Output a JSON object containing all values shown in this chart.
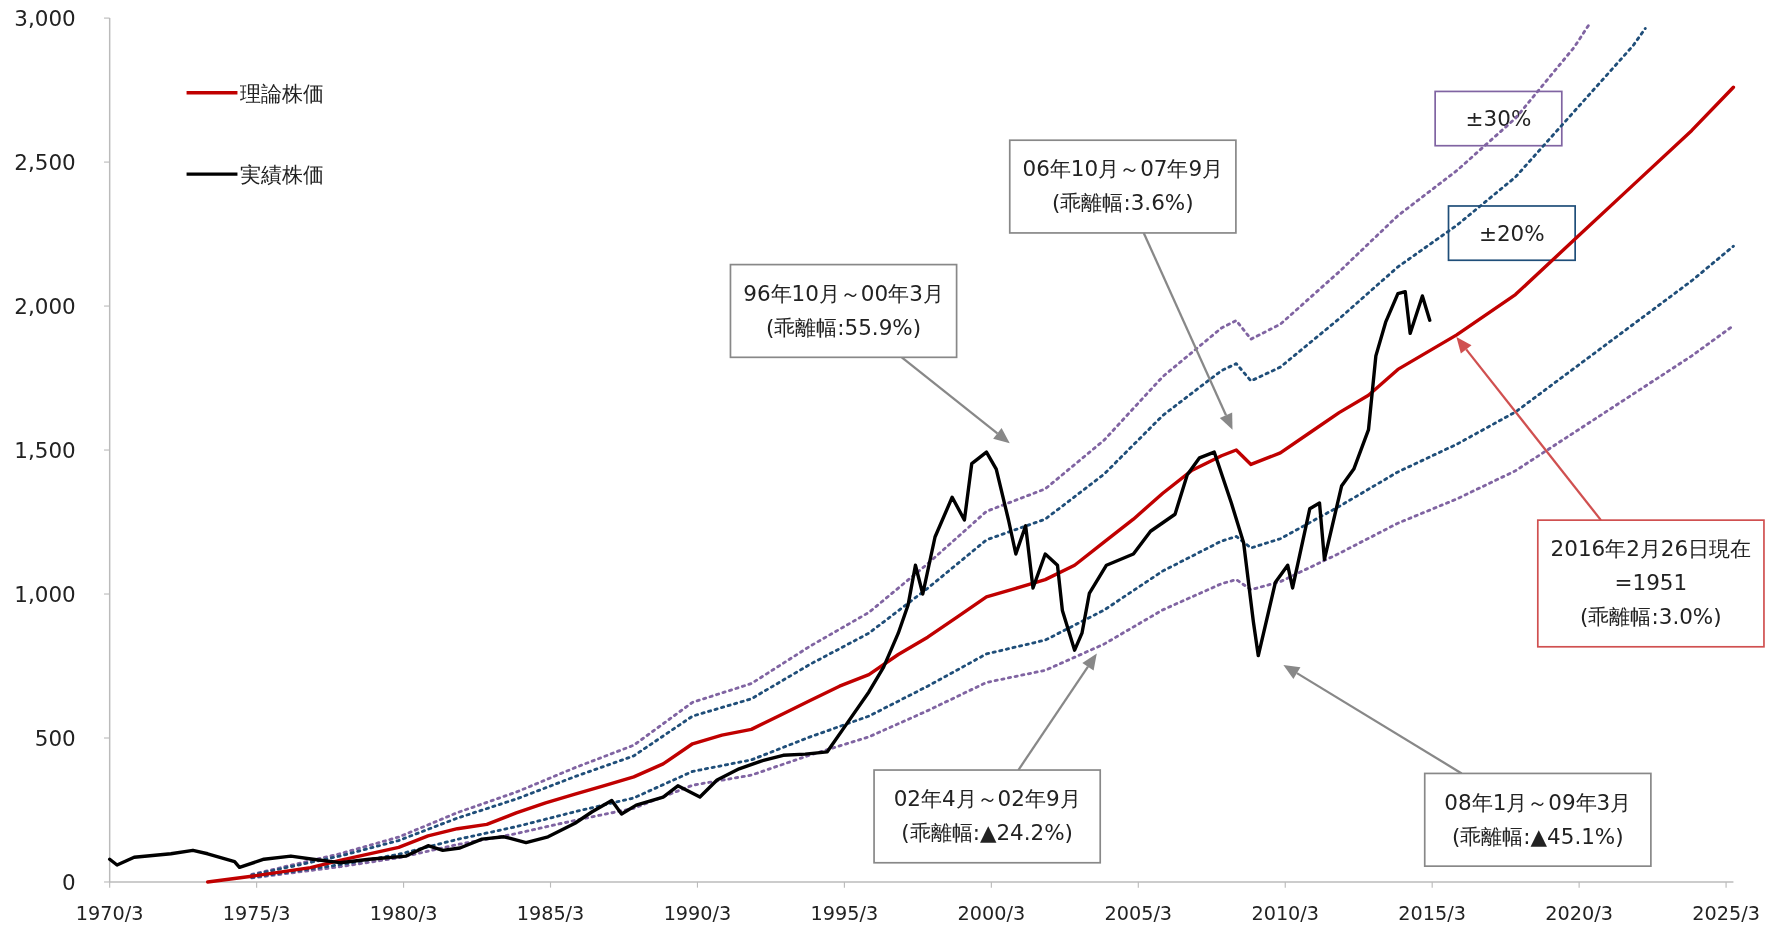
{
  "chart_data": {
    "type": "line",
    "xlim": [
      "1970-03",
      "2025-06"
    ],
    "ylim": [
      0,
      3000
    ],
    "xticks": [
      {
        "value": "1970-03",
        "label": "1970/3"
      },
      {
        "value": "1975-03",
        "label": "1975/3"
      },
      {
        "value": "1980-03",
        "label": "1980/3"
      },
      {
        "value": "1985-03",
        "label": "1985/3"
      },
      {
        "value": "1990-03",
        "label": "1990/3"
      },
      {
        "value": "1995-03",
        "label": "1995/3"
      },
      {
        "value": "2000-03",
        "label": "2000/3"
      },
      {
        "value": "2005-03",
        "label": "2005/3"
      },
      {
        "value": "2010-03",
        "label": "2010/3"
      },
      {
        "value": "2015-03",
        "label": "2015/3"
      },
      {
        "value": "2020-03",
        "label": "2020/3"
      },
      {
        "value": "2025-03",
        "label": "2025/3"
      }
    ],
    "yticks": [
      0,
      500,
      {
        "value": 1000,
        "label": "1,000"
      },
      {
        "value": 1500,
        "label": "1,500"
      },
      {
        "value": 2000,
        "label": "2,000"
      },
      {
        "value": 2500,
        "label": "2,500"
      },
      {
        "value": 3000,
        "label": "3,000"
      }
    ],
    "legend": "top left",
    "series": [
      {
        "name": "±30%",
        "color": "#8064a2",
        "line_style": "dotted",
        "x": [
          "1975-01",
          "1978-01",
          "1980-01",
          "1982-01",
          "1984-01",
          "1986-01",
          "1988-01",
          "1990-01",
          "1992-01",
          "1994-01",
          "1996-01",
          "1998-01",
          "2000-01",
          "2002-01",
          "2004-01",
          "2006-01",
          "2008-01",
          "2008-07",
          "2009-01",
          "2010-01",
          "2012-01",
          "2014-01",
          "2016-01",
          "2018-01",
          "2020-01",
          "2020-07"
        ],
        "values": [
          26,
          98,
          156,
          241,
          312,
          397,
          475,
          624,
          689,
          819,
          936,
          1105,
          1287,
          1365,
          1534,
          1755,
          1924,
          1950,
          1885,
          1937,
          2119,
          2314,
          2470,
          2652,
          2899,
          2977
        ]
      },
      {
        "color": "#8064a2",
        "line_style": "dotted",
        "x": [
          "1975-01",
          "1978-01",
          "1980-01",
          "1982-01",
          "1984-01",
          "1986-01",
          "1988-01",
          "1990-01",
          "1992-01",
          "1994-01",
          "1996-01",
          "1998-01",
          "2000-01",
          "2002-01",
          "2004-01",
          "2006-01",
          "2008-01",
          "2008-07",
          "2009-01",
          "2010-01",
          "2012-01",
          "2014-01",
          "2016-01",
          "2018-01",
          "2020-01",
          "2022-01",
          "2024-01",
          "2025-06"
        ],
        "values": [
          14,
          53,
          84,
          130,
          168,
          214,
          256,
          336,
          371,
          441,
          504,
          595,
          693,
          735,
          826,
          945,
          1036,
          1050,
          1015,
          1043,
          1141,
          1246,
          1330,
          1428,
          1561,
          1694,
          1827,
          1932
        ]
      },
      {
        "name": "±20%",
        "color": "#1f4e79",
        "line_style": "dotted",
        "x": [
          "1975-01",
          "1978-01",
          "1980-01",
          "1982-01",
          "1984-01",
          "1986-01",
          "1988-01",
          "1990-01",
          "1992-01",
          "1994-01",
          "1996-01",
          "1998-01",
          "2000-01",
          "2002-01",
          "2004-01",
          "2006-01",
          "2008-01",
          "2008-07",
          "2009-01",
          "2010-01",
          "2012-01",
          "2014-01",
          "2016-01",
          "2018-01",
          "2020-01",
          "2022-01",
          "2022-06"
        ],
        "values": [
          24,
          90,
          144,
          222,
          288,
          366,
          438,
          576,
          636,
          756,
          864,
          1020,
          1188,
          1260,
          1416,
          1620,
          1776,
          1800,
          1740,
          1788,
          1956,
          2136,
          2280,
          2448,
          2676,
          2904,
          2964
        ]
      },
      {
        "color": "#1f4e79",
        "line_style": "dotted",
        "x": [
          "1975-01",
          "1978-01",
          "1980-01",
          "1982-01",
          "1984-01",
          "1986-01",
          "1988-01",
          "1990-01",
          "1992-01",
          "1994-01",
          "1996-01",
          "1998-01",
          "2000-01",
          "2002-01",
          "2004-01",
          "2006-01",
          "2008-01",
          "2008-07",
          "2009-01",
          "2010-01",
          "2012-01",
          "2014-01",
          "2016-01",
          "2018-01",
          "2020-01",
          "2022-01",
          "2024-01",
          "2025-06"
        ],
        "values": [
          16,
          60,
          96,
          148,
          192,
          244,
          292,
          384,
          424,
          504,
          576,
          680,
          792,
          840,
          944,
          1080,
          1184,
          1200,
          1160,
          1192,
          1304,
          1424,
          1520,
          1632,
          1784,
          1936,
          2088,
          2208
        ]
      },
      {
        "name": "理論株価",
        "color": "#c00000",
        "line_style": "solid",
        "x": [
          "1973-07",
          "1975-01",
          "1977-01",
          "1978-01",
          "1980-01",
          "1981-01",
          "1982-01",
          "1983-01",
          "1984-01",
          "1985-01",
          "1986-01",
          "1987-01",
          "1988-01",
          "1989-01",
          "1990-01",
          "1991-01",
          "1992-01",
          "1993-01",
          "1994-01",
          "1995-01",
          "1996-01",
          "1997-01",
          "1998-01",
          "1999-01",
          "2000-01",
          "2001-01",
          "2002-01",
          "2003-01",
          "2004-01",
          "2005-01",
          "2006-01",
          "2007-01",
          "2008-01",
          "2008-07",
          "2009-01",
          "2010-01",
          "2011-01",
          "2012-01",
          "2013-01",
          "2014-01",
          "2015-01",
          "2016-01",
          "2018-01",
          "2020-01",
          "2022-01",
          "2024-01",
          "2025-06"
        ],
        "values": [
          0,
          20,
          50,
          75,
          120,
          160,
          185,
          200,
          240,
          275,
          305,
          335,
          365,
          410,
          480,
          510,
          530,
          580,
          630,
          680,
          720,
          790,
          850,
          920,
          990,
          1020,
          1050,
          1100,
          1180,
          1260,
          1350,
          1430,
          1480,
          1500,
          1450,
          1490,
          1560,
          1630,
          1690,
          1780,
          1840,
          1900,
          2040,
          2230,
          2420,
          2610,
          2760
        ]
      },
      {
        "name": "実績株価",
        "color": "#000000",
        "line_style": "solid",
        "x": [
          "1970-03",
          "1970-06",
          "1971-01",
          "1972-04",
          "1973-01",
          "1973-07",
          "1974-06",
          "1974-08",
          "1975-06",
          "1976-05",
          "1977-02",
          "1978-01",
          "1979-01",
          "1980-04",
          "1981-01",
          "1981-07",
          "1982-02",
          "1982-11",
          "1983-08",
          "1984-05",
          "1985-02",
          "1986-01",
          "1986-08",
          "1987-04",
          "1987-08",
          "1988-02",
          "1989-01",
          "1989-07",
          "1990-04",
          "1990-11",
          "1991-08",
          "1992-05",
          "1993-02",
          "1993-11",
          "1994-08",
          "1995-04",
          "1996-01",
          "1996-07",
          "1997-01",
          "1997-05",
          "1997-08",
          "1997-11",
          "1998-04",
          "1998-11",
          "1999-04",
          "1999-07",
          "2000-01",
          "2000-05",
          "2000-10",
          "2001-01",
          "2001-05",
          "2001-08",
          "2002-01",
          "2002-06",
          "2002-08",
          "2003-01",
          "2003-04",
          "2003-07",
          "2004-02",
          "2005-01",
          "2005-08",
          "2006-06",
          "2006-11",
          "2007-04",
          "2007-10",
          "2008-05",
          "2008-10",
          "2009-02",
          "2009-04",
          "2009-11",
          "2010-04",
          "2010-06",
          "2011-01",
          "2011-05",
          "2011-07",
          "2012-02",
          "2012-07",
          "2013-01",
          "2013-04",
          "2013-08",
          "2014-01",
          "2014-04",
          "2014-06",
          "2014-11",
          "2015-02"
        ],
        "values": [
          79,
          59,
          86,
          98,
          110,
          98,
          71,
          51,
          79,
          90,
          79,
          67,
          79,
          90,
          126,
          110,
          118,
          149,
          157,
          137,
          157,
          204,
          244,
          283,
          236,
          267,
          295,
          334,
          295,
          354,
          393,
          420,
          440,
          444,
          452,
          550,
          660,
          746,
          864,
          962,
          1100,
          1000,
          1198,
          1336,
          1257,
          1453,
          1493,
          1434,
          1257,
          1139,
          1237,
          1021,
          1139,
          1100,
          943,
          805,
          864,
          1002,
          1100,
          1139,
          1218,
          1277,
          1414,
          1473,
          1493,
          1316,
          1178,
          903,
          786,
          1041,
          1100,
          1021,
          1296,
          1316,
          1120,
          1375,
          1434,
          1571,
          1827,
          1944,
          2043,
          2050,
          1905,
          2035,
          1951
        ]
      }
    ],
    "annotations": [
      "96年10月～00年3月\n(乖離幅:55.9%)",
      "06年10月～07年9月\n(乖離幅:3.6%)",
      "02年4月～02年9月\n(乖離幅:▲24.2%)",
      "08年1月～09年3月\n(乖離幅:▲45.1%)",
      "2016年2月26日現在\n=1951\n(乖離幅:3.0%)"
    ]
  }
}
